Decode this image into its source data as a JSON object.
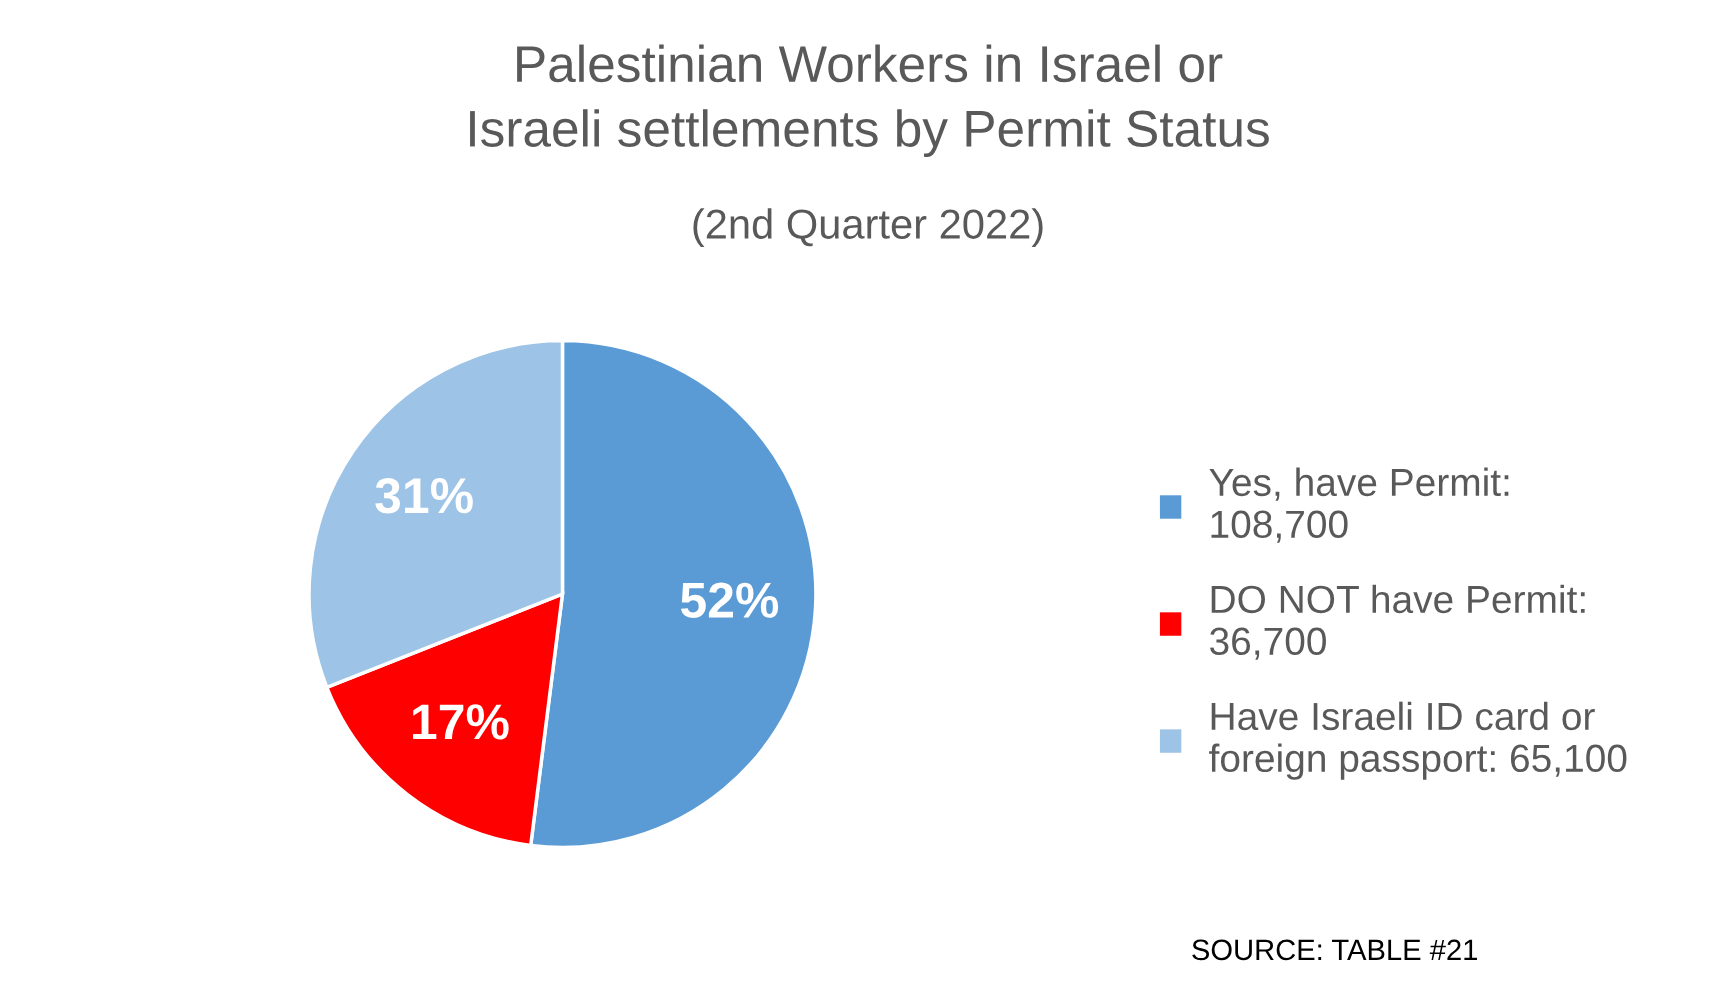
{
  "chart_data": {
    "type": "pie",
    "title": "Palestinian Workers in Israel or\nIsraeli settlements by Permit Status",
    "subtitle": "(2nd Quarter 2022)",
    "categories": [
      "Yes, have Permit:\n108,700",
      "DO NOT have Permit:\n36,700",
      "Have Israeli ID card or\nforeign passport: 65,100"
    ],
    "values": [
      52,
      17,
      31
    ],
    "value_labels": [
      "52%",
      "17%",
      "31%"
    ],
    "colors": [
      "#5b9bd5",
      "#ff0000",
      "#9dc3e6"
    ],
    "legend": "right",
    "annotations": [
      "SOURCE: TABLE #21"
    ]
  }
}
